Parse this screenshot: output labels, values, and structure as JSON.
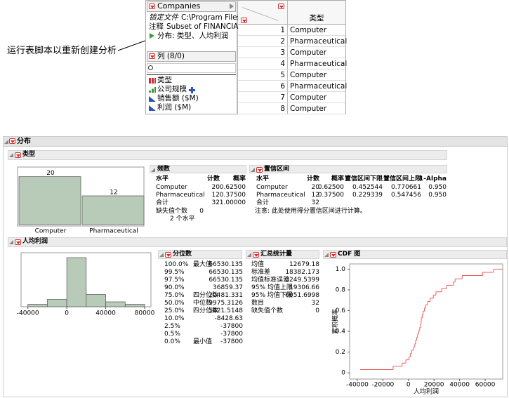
{
  "callout": "运行表脚本以重新创建分析",
  "table_panel": {
    "name": "Companies",
    "properties": [
      {
        "label": "锁定文件",
        "value": "C:\\Program Files"
      },
      {
        "label": "注释",
        "value": "Subset of FINANCIA"
      }
    ],
    "script": "分布: 类型、人均利润"
  },
  "columns_panel": {
    "title": "列 (8/0)",
    "columns": [
      "类型",
      "公司规模",
      "销售额 ($M)",
      "利润 ($M)"
    ]
  },
  "data_grid": {
    "header": "类型",
    "row_numbers": [
      1,
      2,
      3,
      4,
      5,
      6,
      7,
      8
    ],
    "values": [
      "Computer",
      "Pharmaceutical",
      "Computer",
      "Pharmaceutical",
      "Computer",
      "Pharmaceutical",
      "Computer",
      "Computer"
    ]
  },
  "report": {
    "title": "分布",
    "type_section": {
      "title": "类型",
      "frequencies": {
        "title": "频数",
        "header": [
          "水平",
          "计数",
          "概率"
        ],
        "rows": [
          [
            "Computer",
            "20",
            "0.62500"
          ],
          [
            "Pharmaceutical",
            "12",
            "0.37500"
          ],
          [
            "合计",
            "32",
            "1.00000"
          ]
        ],
        "missing_label": "缺失值个数",
        "missing_value": "0",
        "levels": "2 个水平"
      },
      "confidence": {
        "title": "置信区间",
        "header": [
          "水平",
          "计数",
          "概率",
          "置信区间下限",
          "置信区间上限",
          "1-Alpha"
        ],
        "rows": [
          [
            "Computer",
            "20",
            "0.62500",
            "0.452544",
            "0.770661",
            "0.950"
          ],
          [
            "Pharmaceutical",
            "12",
            "0.37500",
            "0.229339",
            "0.547456",
            "0.950"
          ],
          [
            "合计",
            "32"
          ]
        ],
        "note": "注意: 此处使用得分置信区间进行计算。"
      }
    },
    "profit_section": {
      "title": "人均利润",
      "quantiles": {
        "title": "分位数",
        "rows": [
          {
            "pct": "100.0%",
            "label": "最大值",
            "value": "66530.135"
          },
          {
            "pct": "99.5%",
            "value": "66530.135"
          },
          {
            "pct": "97.5%",
            "value": "66530.135"
          },
          {
            "pct": "90.0%",
            "value": "36859.37"
          },
          {
            "pct": "75.0%",
            "label": "四分位数",
            "value": "20481.331"
          },
          {
            "pct": "50.0%",
            "label": "中位数",
            "value": "9975.3126"
          },
          {
            "pct": "25.0%",
            "label": "四分位数",
            "value": "5421.5148"
          },
          {
            "pct": "10.0%",
            "value": "-8428.63"
          },
          {
            "pct": "2.5%",
            "value": "-37800"
          },
          {
            "pct": "0.5%",
            "value": "-37800"
          },
          {
            "pct": "0.0%",
            "label": "最小值",
            "value": "-37800"
          }
        ]
      },
      "summary": {
        "title": "汇总统计量",
        "rows": [
          [
            "均值",
            "12679.18"
          ],
          [
            "标准差",
            "18382.173"
          ],
          [
            "均值标准误差",
            "3249.5399"
          ],
          [
            "95% 均值上限",
            "19306.66"
          ],
          [
            "95% 均值下限",
            "6051.6998"
          ],
          [
            "数目",
            "32"
          ],
          [
            "缺失值个数",
            "0"
          ]
        ]
      }
    }
  },
  "chart_data": [
    {
      "type": "bar",
      "categories": [
        "Computer",
        "Pharmaceutical"
      ],
      "values": [
        20,
        12
      ],
      "ylim": [
        0,
        24
      ],
      "color": "#b8cbb8"
    },
    {
      "type": "histogram",
      "bins": [
        -40000,
        -20000,
        0,
        20000,
        40000,
        60000,
        80000
      ],
      "values": [
        1,
        3,
        20,
        5,
        2,
        1
      ],
      "xlim": [
        -47000,
        86500
      ],
      "ylim": [
        0,
        22
      ],
      "xticks": [
        -40000,
        0,
        40000,
        80000
      ],
      "color": "#b8cbb8"
    },
    {
      "type": "step",
      "title": "CDF 图",
      "xlabel": "人均利润",
      "ylabel": "累积概率",
      "color": "#e8605a",
      "x": [
        -37800,
        -12000,
        -5000,
        -2000,
        500,
        1500,
        2500,
        4000,
        5000,
        5600,
        6500,
        7200,
        8000,
        8800,
        9500,
        9900,
        10050,
        10800,
        11500,
        12500,
        13500,
        15000,
        17000,
        19500,
        21500,
        26000,
        30000,
        35000,
        36500,
        42000,
        58000,
        66530
      ],
      "y": [
        0.031,
        0.063,
        0.094,
        0.125,
        0.156,
        0.188,
        0.219,
        0.25,
        0.281,
        0.313,
        0.344,
        0.375,
        0.406,
        0.438,
        0.469,
        0.5,
        0.531,
        0.563,
        0.594,
        0.625,
        0.656,
        0.688,
        0.719,
        0.75,
        0.781,
        0.813,
        0.844,
        0.875,
        0.906,
        0.938,
        0.969,
        1
      ],
      "xlim": [
        -46000,
        73700
      ],
      "ylim": [
        -0.06,
        1.05
      ],
      "xticks": [
        -40000,
        -20000,
        0,
        20000,
        40000,
        60000
      ],
      "yticks": [
        0,
        0.2,
        0.4,
        0.6,
        0.8,
        {
          "value": 1,
          "label": "1.0"
        }
      ]
    }
  ]
}
